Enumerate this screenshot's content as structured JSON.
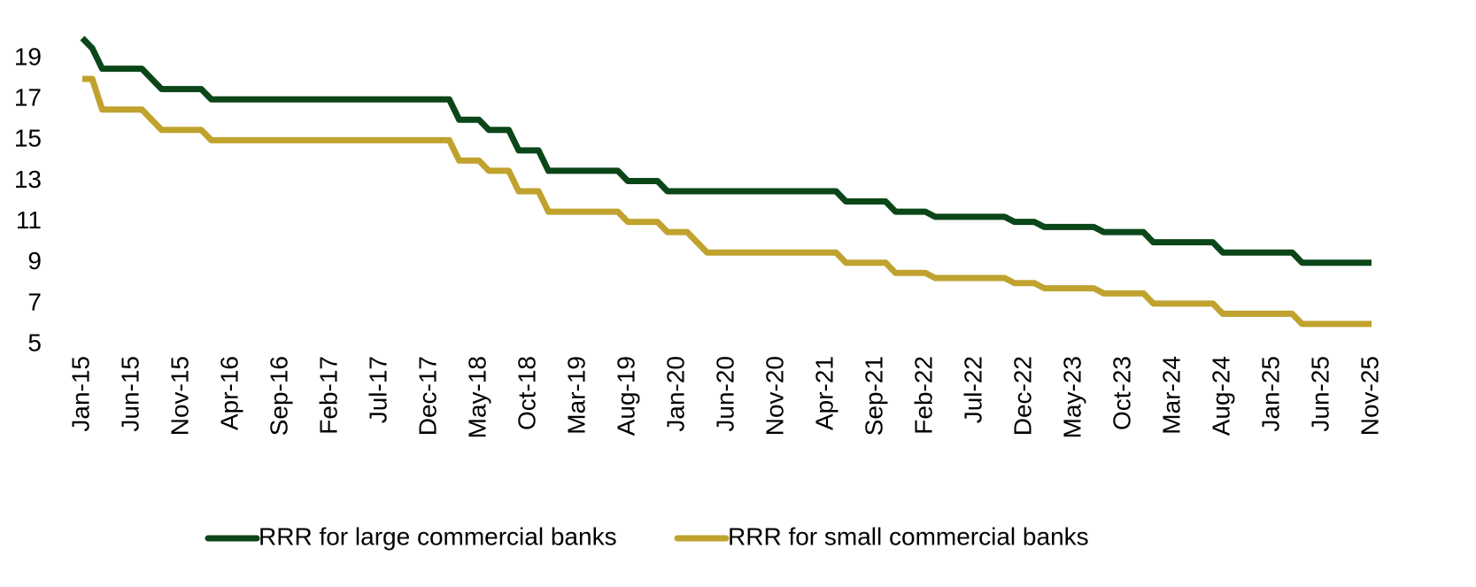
{
  "chart_data": {
    "type": "line",
    "categories": [
      "Jan-15",
      null,
      null,
      null,
      null,
      "Jun-15",
      null,
      null,
      null,
      null,
      "Nov-15",
      null,
      null,
      null,
      null,
      "Apr-16",
      null,
      null,
      null,
      null,
      "Sep-16",
      null,
      null,
      null,
      null,
      "Feb-17",
      null,
      null,
      null,
      null,
      "Jul-17",
      null,
      null,
      null,
      null,
      "Dec-17",
      null,
      null,
      null,
      null,
      "May-18",
      null,
      null,
      null,
      null,
      "Oct-18",
      null,
      null,
      null,
      null,
      "Mar-19",
      null,
      null,
      null,
      null,
      "Aug-19",
      null,
      null,
      null,
      null,
      "Jan-20",
      null,
      null,
      null,
      null,
      "Jun-20",
      null,
      null,
      null,
      null,
      "Nov-20",
      null,
      null,
      null,
      null,
      "Apr-21",
      null,
      null,
      null,
      null,
      "Sep-21",
      null,
      null,
      null,
      null,
      "Feb-22",
      null,
      null,
      null,
      null,
      "Jul-22",
      null,
      null,
      null,
      null,
      "Dec-22",
      null,
      null,
      null,
      null,
      "May-23",
      null,
      null,
      null,
      null,
      "Oct-23",
      null,
      null,
      null,
      null,
      "Mar-24",
      null,
      null,
      null,
      null,
      "Aug-24",
      null,
      null,
      null,
      null,
      "Jan-25",
      null,
      null,
      null,
      null,
      "Jun-25",
      null,
      null,
      null,
      null,
      "Nov-25"
    ],
    "series": [
      {
        "name": "RRR for large commercial banks",
        "color": "#0b4619",
        "values": [
          20,
          19.5,
          18.5,
          18.5,
          18.5,
          18.5,
          18.5,
          18,
          17.5,
          17.5,
          17.5,
          17.5,
          17.5,
          17,
          17,
          17,
          17,
          17,
          17,
          17,
          17,
          17,
          17,
          17,
          17,
          17,
          17,
          17,
          17,
          17,
          17,
          17,
          17,
          17,
          17,
          17,
          17,
          17,
          16,
          16,
          16,
          15.5,
          15.5,
          15.5,
          14.5,
          14.5,
          14.5,
          13.5,
          13.5,
          13.5,
          13.5,
          13.5,
          13.5,
          13.5,
          13.5,
          13,
          13,
          13,
          13,
          12.5,
          12.5,
          12.5,
          12.5,
          12.5,
          12.5,
          12.5,
          12.5,
          12.5,
          12.5,
          12.5,
          12.5,
          12.5,
          12.5,
          12.5,
          12.5,
          12.5,
          12.5,
          12,
          12,
          12,
          12,
          12,
          11.5,
          11.5,
          11.5,
          11.5,
          11.25,
          11.25,
          11.25,
          11.25,
          11.25,
          11.25,
          11.25,
          11.25,
          11,
          11,
          11,
          10.75,
          10.75,
          10.75,
          10.75,
          10.75,
          10.75,
          10.5,
          10.5,
          10.5,
          10.5,
          10.5,
          10,
          10,
          10,
          10,
          10,
          10,
          10,
          9.5,
          9.5,
          9.5,
          9.5,
          9.5,
          9.5,
          9.5,
          9.5,
          9,
          9,
          9,
          9,
          9,
          9,
          9,
          9
        ]
      },
      {
        "name": "RRR for small commercial banks",
        "color": "#c0a22e",
        "values": [
          18,
          18,
          16.5,
          16.5,
          16.5,
          16.5,
          16.5,
          16,
          15.5,
          15.5,
          15.5,
          15.5,
          15.5,
          15,
          15,
          15,
          15,
          15,
          15,
          15,
          15,
          15,
          15,
          15,
          15,
          15,
          15,
          15,
          15,
          15,
          15,
          15,
          15,
          15,
          15,
          15,
          15,
          15,
          14,
          14,
          14,
          13.5,
          13.5,
          13.5,
          12.5,
          12.5,
          12.5,
          11.5,
          11.5,
          11.5,
          11.5,
          11.5,
          11.5,
          11.5,
          11.5,
          11,
          11,
          11,
          11,
          10.5,
          10.5,
          10.5,
          10,
          9.5,
          9.5,
          9.5,
          9.5,
          9.5,
          9.5,
          9.5,
          9.5,
          9.5,
          9.5,
          9.5,
          9.5,
          9.5,
          9.5,
          9,
          9,
          9,
          9,
          9,
          8.5,
          8.5,
          8.5,
          8.5,
          8.25,
          8.25,
          8.25,
          8.25,
          8.25,
          8.25,
          8.25,
          8.25,
          8,
          8,
          8,
          7.75,
          7.75,
          7.75,
          7.75,
          7.75,
          7.75,
          7.5,
          7.5,
          7.5,
          7.5,
          7.5,
          7,
          7,
          7,
          7,
          7,
          7,
          7,
          6.5,
          6.5,
          6.5,
          6.5,
          6.5,
          6.5,
          6.5,
          6.5,
          6,
          6,
          6,
          6,
          6,
          6,
          6,
          6
        ]
      }
    ],
    "ylim": [
      5,
      20
    ],
    "yticks": [
      5,
      7,
      9,
      11,
      13,
      15,
      17,
      19
    ],
    "grid": false,
    "legend": "bottom"
  }
}
